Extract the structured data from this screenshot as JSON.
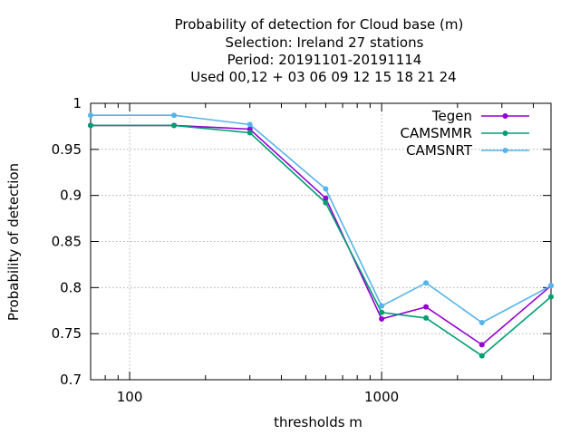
{
  "chart_data": {
    "type": "line",
    "title_lines": [
      "Probability of detection  for Cloud base (m)",
      "Selection: Ireland     27 stations",
      "Period: 20191101-20191114",
      "Used  00,12  + 03 06 09 12 15 18 21 24"
    ],
    "xlabel": "thresholds m",
    "ylabel": "Probability of detection",
    "x_scale": "log",
    "xlim": [
      70,
      4700
    ],
    "ylim": [
      0.7,
      1.0
    ],
    "x_ticks": [
      100,
      1000
    ],
    "x_tick_labels": [
      "100",
      "1000"
    ],
    "y_ticks": [
      0.7,
      0.75,
      0.8,
      0.85,
      0.9,
      0.95,
      1.0
    ],
    "y_tick_labels": [
      "0.7",
      "0.75",
      "0.8",
      "0.85",
      "0.9",
      "0.95",
      "1"
    ],
    "x": [
      70,
      150,
      300,
      600,
      1000,
      1500,
      2500,
      4700
    ],
    "grid": true,
    "legend_position": "top-right",
    "series": [
      {
        "name": "Tegen",
        "color": "#9400d3",
        "values": [
          0.976,
          0.976,
          0.972,
          0.897,
          0.766,
          0.779,
          0.738,
          0.802
        ]
      },
      {
        "name": "CAMSMMR",
        "color": "#009e73",
        "values": [
          0.976,
          0.976,
          0.968,
          0.892,
          0.773,
          0.767,
          0.726,
          0.79
        ]
      },
      {
        "name": "CAMSNRT",
        "color": "#56b4e9",
        "values": [
          0.987,
          0.987,
          0.977,
          0.907,
          0.78,
          0.805,
          0.762,
          0.802
        ]
      }
    ]
  }
}
